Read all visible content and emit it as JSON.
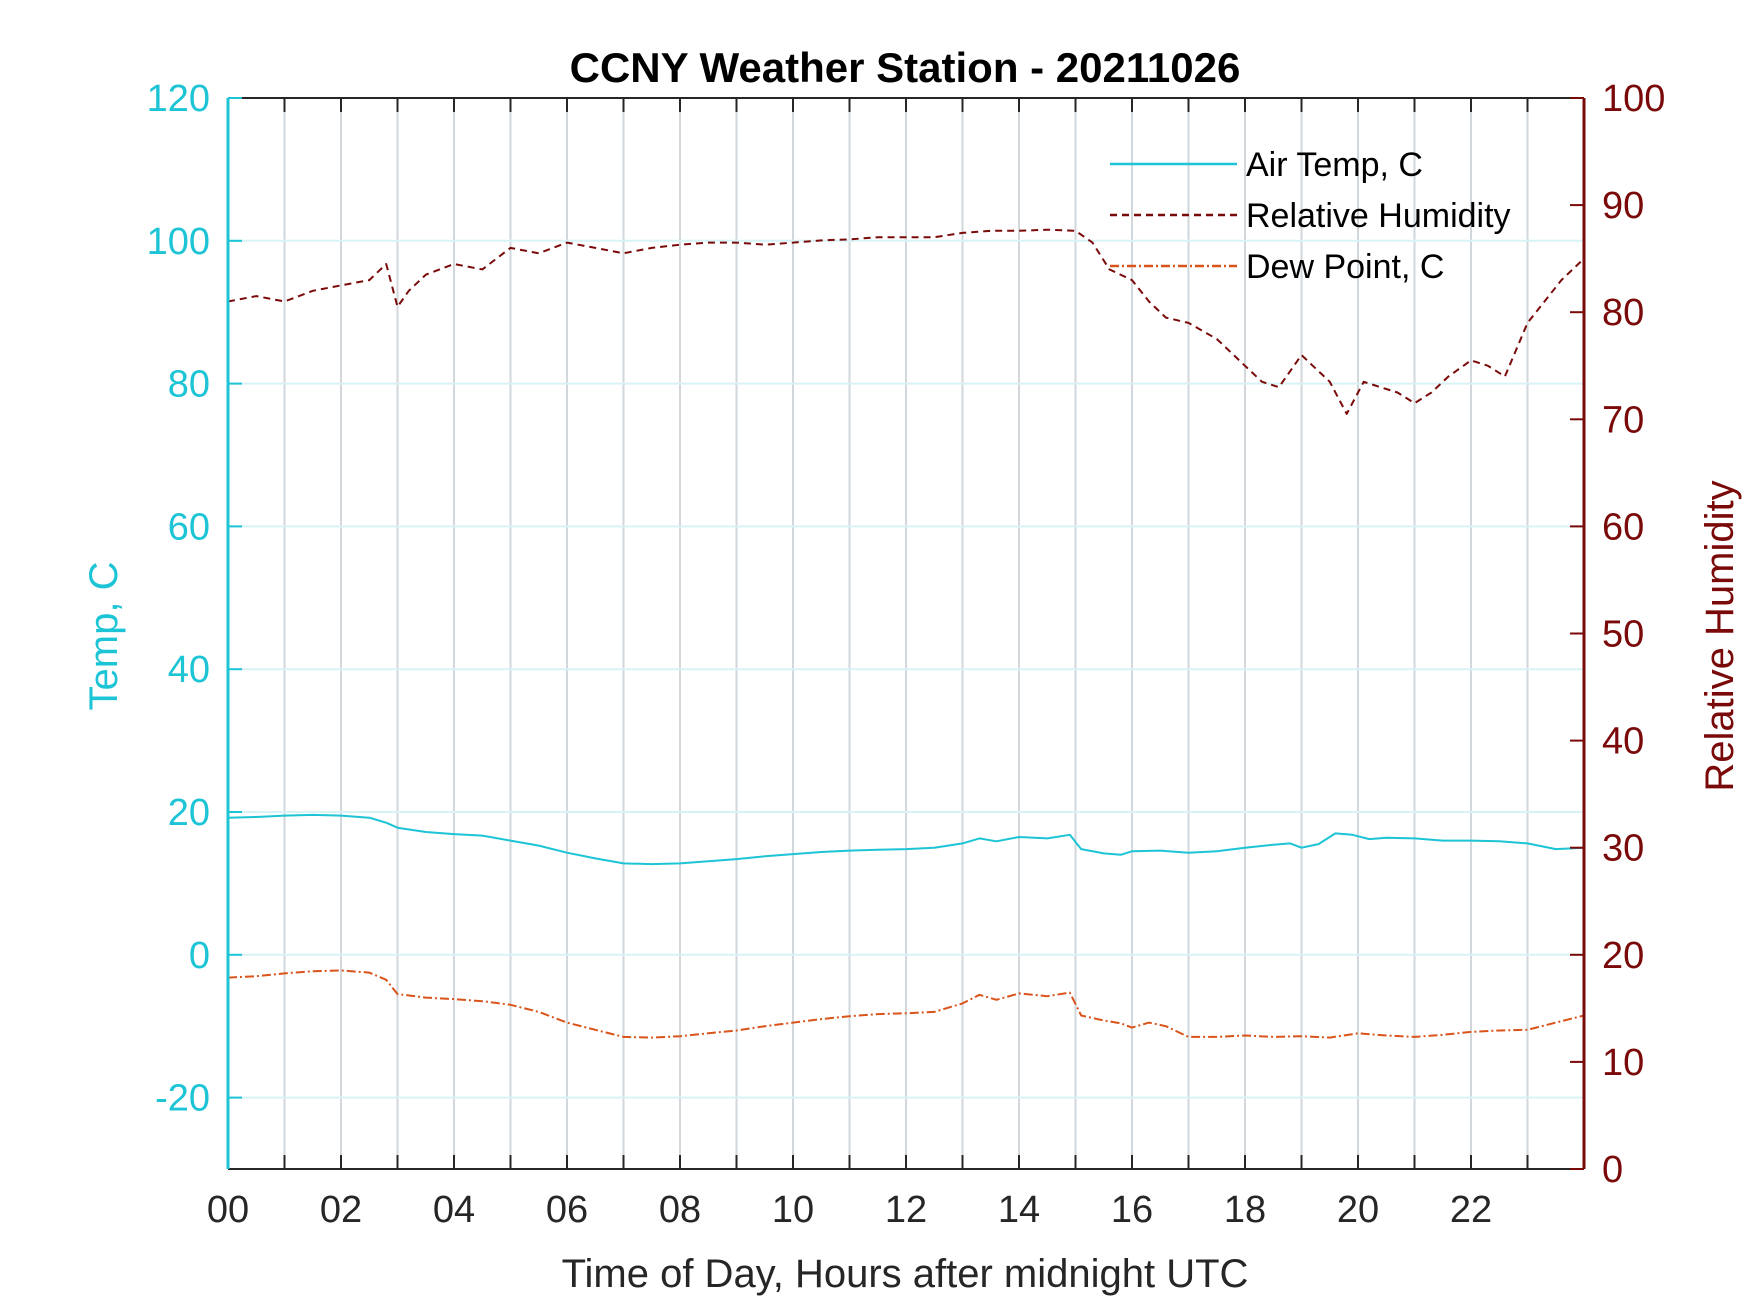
{
  "chart_data": {
    "type": "line",
    "title": "CCNY Weather Station - 20211026",
    "xlabel": "Time of Day, Hours after midnight UTC",
    "ylabel_left": "Temp, C",
    "ylabel_right": "Relative Humidity",
    "xlim": [
      0,
      24
    ],
    "ylim_left": [
      -30,
      120
    ],
    "ylim_right": [
      0,
      100
    ],
    "x_ticks": [
      0,
      2,
      4,
      6,
      8,
      10,
      12,
      14,
      16,
      18,
      20,
      22
    ],
    "x_tick_labels": [
      "00",
      "02",
      "04",
      "06",
      "08",
      "10",
      "12",
      "14",
      "16",
      "18",
      "20",
      "22"
    ],
    "y_ticks_left": [
      -20,
      0,
      20,
      40,
      60,
      80,
      100,
      120
    ],
    "y_ticks_right": [
      0,
      10,
      20,
      30,
      40,
      50,
      60,
      70,
      80,
      90,
      100
    ],
    "grid": true,
    "legend_position": "top-right",
    "series": [
      {
        "name": "Air Temp, C",
        "axis": "left",
        "color": "#1cc4d6",
        "style": "solid",
        "x": [
          0,
          0.5,
          1,
          1.5,
          2,
          2.5,
          2.8,
          3,
          3.5,
          4,
          4.5,
          5,
          5.5,
          6,
          6.5,
          7,
          7.5,
          8,
          8.5,
          9,
          9.5,
          10,
          10.5,
          11,
          11.5,
          12,
          12.5,
          13,
          13.3,
          13.6,
          14,
          14.5,
          14.9,
          15.1,
          15.5,
          15.8,
          16,
          16.5,
          17,
          17.5,
          18,
          18.5,
          18.8,
          19,
          19.3,
          19.6,
          19.9,
          20.2,
          20.5,
          21,
          21.5,
          22,
          22.5,
          23,
          23.5,
          24
        ],
        "y": [
          19.2,
          19.3,
          19.5,
          19.6,
          19.5,
          19.2,
          18.5,
          17.8,
          17.2,
          16.9,
          16.7,
          16.0,
          15.3,
          14.3,
          13.5,
          12.8,
          12.7,
          12.8,
          13.1,
          13.4,
          13.8,
          14.1,
          14.4,
          14.6,
          14.7,
          14.8,
          15.0,
          15.6,
          16.3,
          15.9,
          16.5,
          16.3,
          16.8,
          14.8,
          14.2,
          14.0,
          14.5,
          14.6,
          14.3,
          14.5,
          15.0,
          15.4,
          15.6,
          15.0,
          15.5,
          17.0,
          16.8,
          16.2,
          16.4,
          16.3,
          16.0,
          16.0,
          15.9,
          15.6,
          14.8,
          15.0
        ]
      },
      {
        "name": "Relative Humidity",
        "axis": "right",
        "color": "#7a0a0a",
        "style": "dashed",
        "x": [
          0,
          0.5,
          1,
          1.5,
          2,
          2.5,
          2.8,
          3,
          3.2,
          3.5,
          4,
          4.5,
          5,
          5.5,
          6,
          6.5,
          7,
          7.5,
          8,
          8.5,
          9,
          9.5,
          10,
          10.5,
          11,
          11.5,
          12,
          12.5,
          13,
          13.5,
          14,
          14.5,
          15,
          15.3,
          15.6,
          16,
          16.3,
          16.6,
          17,
          17.5,
          18,
          18.3,
          18.6,
          19,
          19.2,
          19.5,
          19.8,
          20.1,
          20.4,
          20.7,
          21,
          21.3,
          21.6,
          22,
          22.3,
          22.6,
          23,
          23.3,
          23.6,
          24
        ],
        "y": [
          81.0,
          81.5,
          81.0,
          82.0,
          82.5,
          83.0,
          84.5,
          80.5,
          82.0,
          83.5,
          84.5,
          84.0,
          86.0,
          85.5,
          86.5,
          86.0,
          85.5,
          86.0,
          86.3,
          86.5,
          86.5,
          86.3,
          86.5,
          86.7,
          86.8,
          87.0,
          87.0,
          87.0,
          87.4,
          87.6,
          87.6,
          87.7,
          87.6,
          86.5,
          84.0,
          83.0,
          81.0,
          79.5,
          79.0,
          77.5,
          75.0,
          73.5,
          73.0,
          76.0,
          75.0,
          73.5,
          70.5,
          73.5,
          73.0,
          72.5,
          71.5,
          72.5,
          74.0,
          75.5,
          75.0,
          74.0,
          79.0,
          81.0,
          83.0,
          85.0
        ]
      },
      {
        "name": "Dew Point, C",
        "axis": "left",
        "color": "#d9541a",
        "style": "dashdot",
        "x": [
          0,
          0.5,
          1,
          1.5,
          2,
          2.5,
          2.8,
          3,
          3.5,
          4,
          4.5,
          5,
          5.5,
          6,
          6.5,
          7,
          7.5,
          8,
          8.5,
          9,
          9.5,
          10,
          10.5,
          11,
          11.5,
          12,
          12.5,
          13,
          13.3,
          13.6,
          14,
          14.5,
          14.9,
          15.1,
          15.5,
          15.8,
          16,
          16.3,
          16.6,
          17,
          17.5,
          18,
          18.5,
          19,
          19.5,
          20,
          20.5,
          21,
          21.5,
          22,
          22.5,
          23,
          23.5,
          24
        ],
        "y": [
          -3.2,
          -3.0,
          -2.6,
          -2.3,
          -2.2,
          -2.5,
          -3.5,
          -5.5,
          -6.0,
          -6.2,
          -6.5,
          -7.0,
          -8.0,
          -9.5,
          -10.5,
          -11.5,
          -11.6,
          -11.4,
          -11.0,
          -10.6,
          -10.0,
          -9.5,
          -9.0,
          -8.6,
          -8.3,
          -8.2,
          -8.0,
          -6.8,
          -5.6,
          -6.3,
          -5.4,
          -5.8,
          -5.3,
          -8.5,
          -9.2,
          -9.6,
          -10.2,
          -9.5,
          -10.0,
          -11.5,
          -11.5,
          -11.3,
          -11.5,
          -11.4,
          -11.6,
          -11.0,
          -11.3,
          -11.5,
          -11.2,
          -10.8,
          -10.6,
          -10.5,
          -9.5,
          -8.5
        ]
      }
    ]
  }
}
